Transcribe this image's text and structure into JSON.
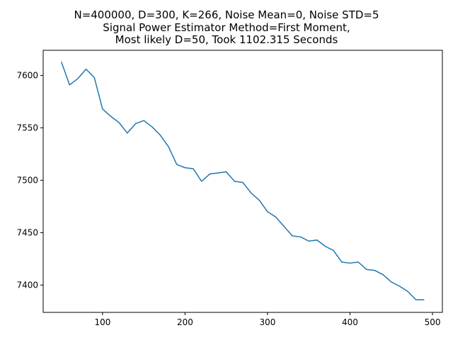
{
  "chart_data": {
    "type": "line",
    "title_lines": [
      "N=400000, D=300, K=266, Noise Mean=0, Noise STD=5",
      "Signal Power Estimator Method=First Moment,",
      "Most likely D=50, Took 1102.315 Seconds"
    ],
    "xlabel": "",
    "ylabel": "",
    "xlim": [
      28,
      512
    ],
    "ylim": [
      7374,
      7624
    ],
    "x_ticks": [
      100,
      200,
      300,
      400,
      500
    ],
    "y_ticks": [
      7400,
      7450,
      7500,
      7550,
      7600
    ],
    "grid": false,
    "series": [
      {
        "color": "#1f77b4",
        "x": [
          50,
          60,
          70,
          80,
          90,
          100,
          110,
          120,
          130,
          140,
          150,
          160,
          170,
          180,
          190,
          200,
          210,
          220,
          230,
          240,
          250,
          260,
          270,
          280,
          290,
          300,
          310,
          320,
          330,
          340,
          350,
          360,
          370,
          380,
          390,
          400,
          410,
          420,
          430,
          440,
          450,
          460,
          470,
          480,
          490
        ],
        "y": [
          7613,
          7591,
          7597,
          7606,
          7598,
          7568,
          7561,
          7555,
          7545,
          7554,
          7557,
          7551,
          7543,
          7532,
          7515,
          7512,
          7511,
          7499,
          7506,
          7507,
          7508,
          7499,
          7498,
          7488,
          7481,
          7470,
          7465,
          7456,
          7447,
          7446,
          7442,
          7443,
          7437,
          7433,
          7422,
          7421,
          7422,
          7415,
          7414,
          7410,
          7403,
          7399,
          7394,
          7386,
          7386
        ]
      }
    ]
  }
}
